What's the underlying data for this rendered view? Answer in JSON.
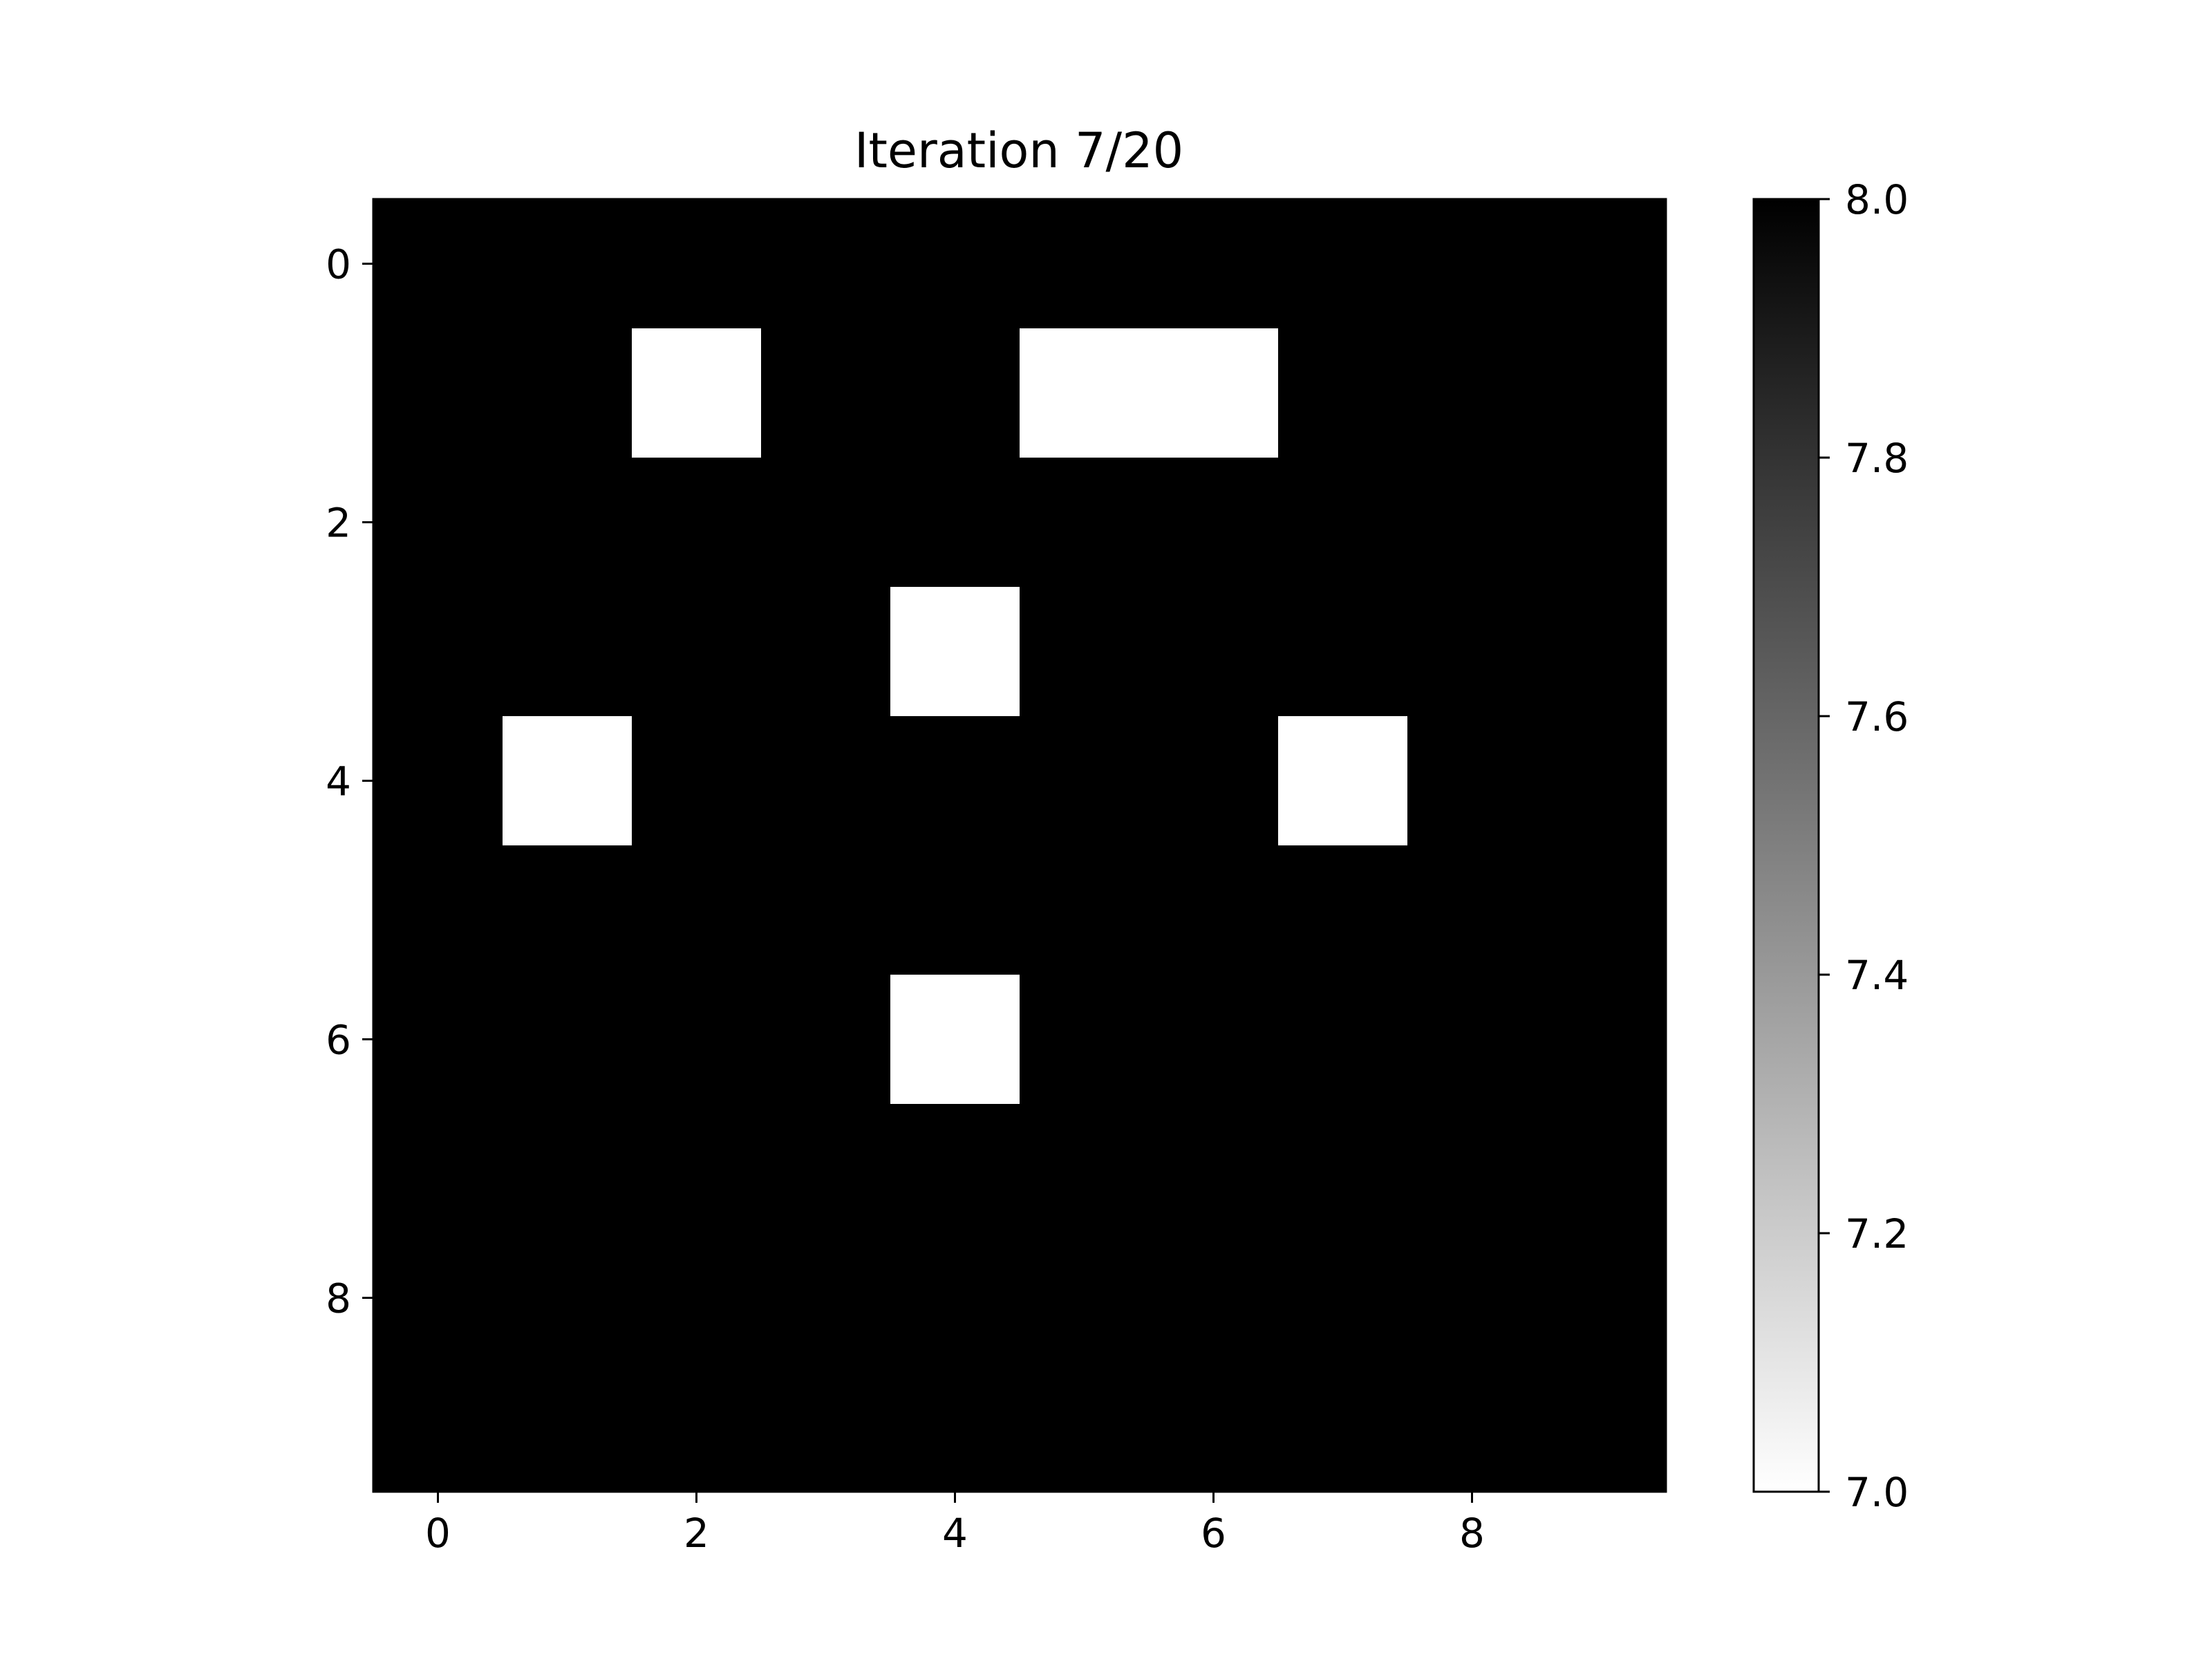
{
  "chart_data": {
    "type": "heatmap",
    "title": "Iteration 7/20",
    "xlabel": "",
    "ylabel": "",
    "rows": 10,
    "cols": 10,
    "values": [
      [
        8,
        8,
        8,
        8,
        8,
        8,
        8,
        8,
        8,
        8
      ],
      [
        8,
        8,
        7,
        8,
        8,
        7,
        7,
        8,
        8,
        8
      ],
      [
        8,
        8,
        8,
        8,
        8,
        8,
        8,
        8,
        8,
        8
      ],
      [
        8,
        8,
        8,
        8,
        7,
        8,
        8,
        8,
        8,
        8
      ],
      [
        8,
        7,
        8,
        8,
        8,
        8,
        8,
        7,
        8,
        8
      ],
      [
        8,
        8,
        8,
        8,
        8,
        8,
        8,
        8,
        8,
        8
      ],
      [
        8,
        8,
        8,
        8,
        7,
        8,
        8,
        8,
        8,
        8
      ],
      [
        8,
        8,
        8,
        8,
        8,
        8,
        8,
        8,
        8,
        8
      ],
      [
        8,
        8,
        8,
        8,
        8,
        8,
        8,
        8,
        8,
        8
      ],
      [
        8,
        8,
        8,
        8,
        8,
        8,
        8,
        8,
        8,
        8
      ]
    ],
    "colormap": "gray_r",
    "vmin": 7.0,
    "vmax": 8.0,
    "xlim": [
      -0.5,
      9.5
    ],
    "ylim": [
      9.5,
      -0.5
    ],
    "x_ticks": [
      0,
      2,
      4,
      6,
      8
    ],
    "x_tick_labels": [
      "0",
      "2",
      "4",
      "6",
      "8"
    ],
    "y_ticks": [
      0,
      2,
      4,
      6,
      8
    ],
    "y_tick_labels": [
      "0",
      "2",
      "4",
      "6",
      "8"
    ],
    "colorbar": {
      "ticks": [
        7.0,
        7.2,
        7.4,
        7.6,
        7.8,
        8.0
      ],
      "tick_labels": [
        "7.0",
        "7.2",
        "7.4",
        "7.6",
        "7.8",
        "8.0"
      ]
    },
    "grid": false,
    "colors": {
      "low": "#ffffff",
      "high": "#000000"
    }
  }
}
